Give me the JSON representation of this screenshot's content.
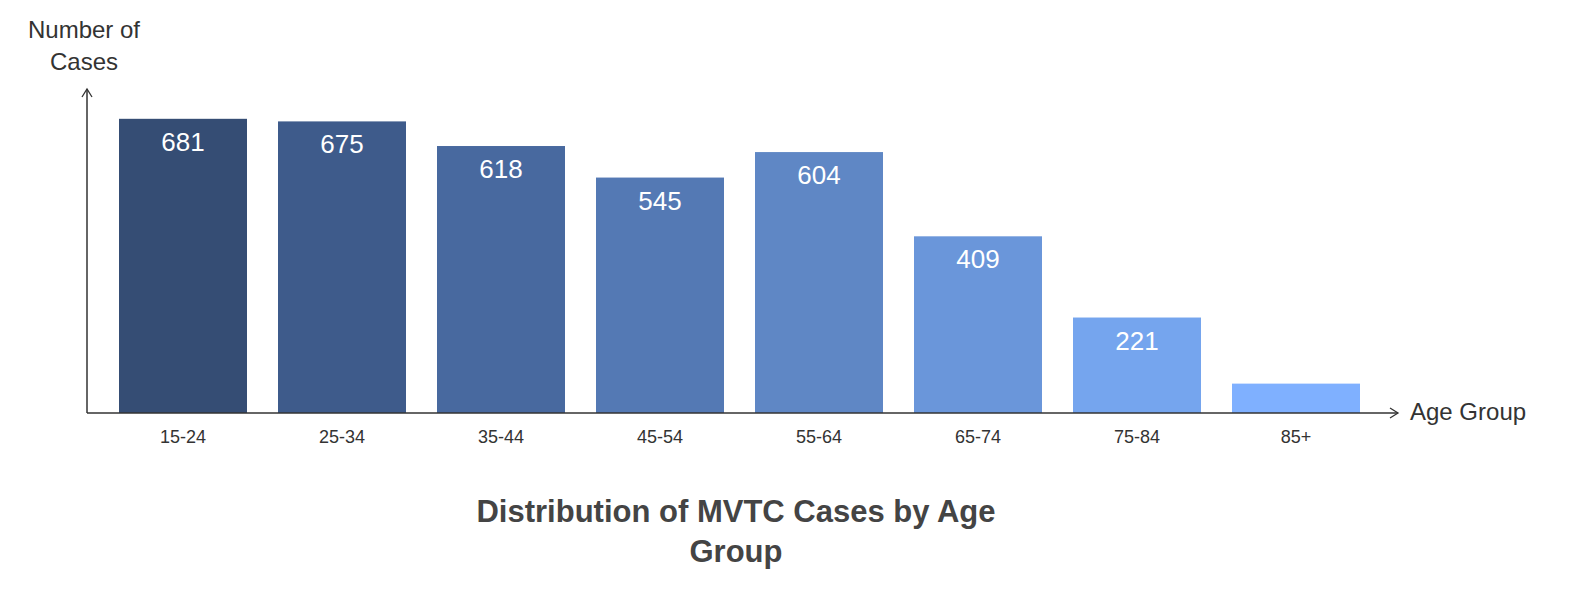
{
  "chart_data": {
    "type": "bar",
    "title": "Distribution of MVTC Cases by Age Group",
    "x_label": "Age Group",
    "y_label": "Number of Cases",
    "categories": [
      "15-24",
      "25-34",
      "35-44",
      "45-54",
      "55-64",
      "65-74",
      "75-84",
      "85+"
    ],
    "values": [
      681,
      675,
      618,
      545,
      604,
      409,
      221,
      68
    ],
    "value_labels": [
      "681",
      "675",
      "618",
      "545",
      "604",
      "409",
      "221",
      null
    ],
    "colors": [
      "#354d74",
      "#3e5b8b",
      "#48699f",
      "#5479b4",
      "#5f87c5",
      "#6a96da",
      "#75a5ee",
      "#7fb0ff"
    ],
    "ylim": [
      0,
      750
    ],
    "grid": false,
    "data_labels": true,
    "tick_labels": "x"
  }
}
